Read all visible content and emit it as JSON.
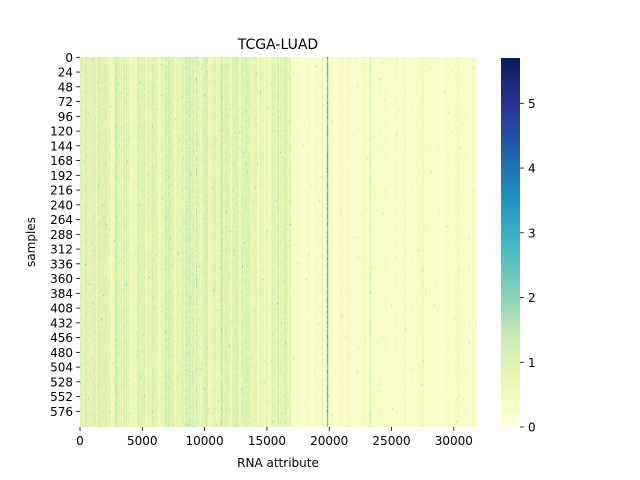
{
  "chart_data": {
    "type": "heatmap",
    "title": "TCGA-LUAD",
    "xlabel": "RNA attribute",
    "ylabel": "samples",
    "xlim": [
      0,
      31860
    ],
    "ylim": [
      0,
      602
    ],
    "x_ticks": [
      0,
      5000,
      10000,
      15000,
      20000,
      25000,
      30000
    ],
    "y_ticks": [
      0,
      24,
      48,
      72,
      96,
      120,
      144,
      168,
      192,
      216,
      240,
      264,
      288,
      312,
      336,
      360,
      384,
      408,
      432,
      456,
      480,
      504,
      528,
      552,
      576
    ],
    "colorbar": {
      "colormap": "YlGnBu",
      "range": [
        0,
        5.7
      ],
      "ticks": [
        0,
        1,
        2,
        3,
        4,
        5
      ],
      "colors": [
        "#ffffd9",
        "#edf8b1",
        "#c7e9b4",
        "#7fcdbb",
        "#41b6c4",
        "#1d91c0",
        "#225ea8",
        "#253494",
        "#081d58"
      ]
    },
    "grid": false
  }
}
